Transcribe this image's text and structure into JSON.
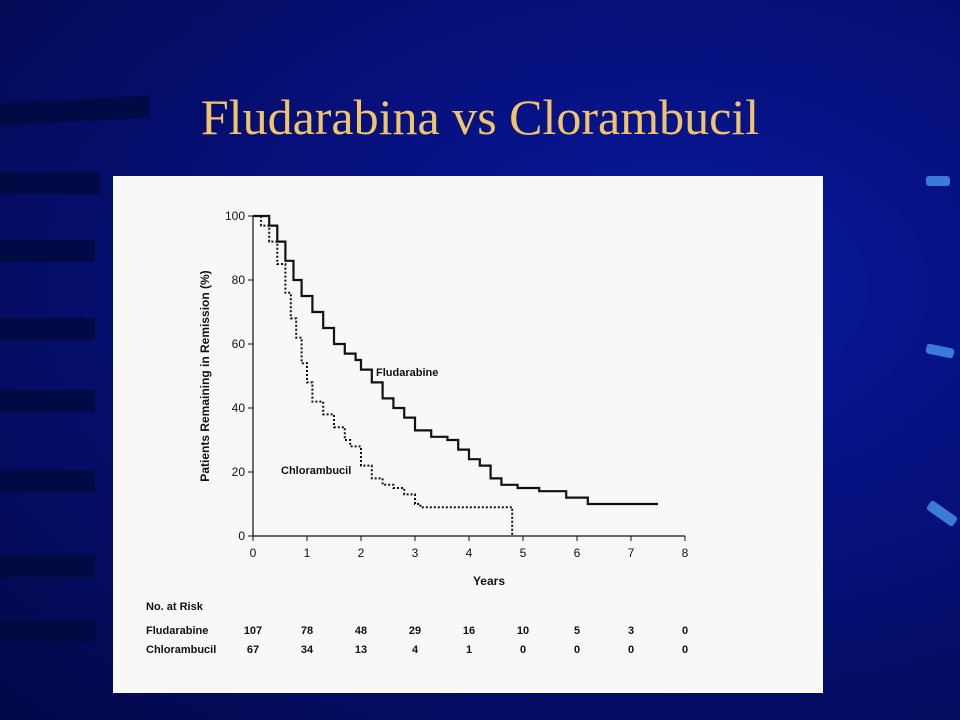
{
  "slide": {
    "title": "Fludarabina vs Clorambucil"
  },
  "chart_data": {
    "type": "line",
    "xlabel": "Years",
    "ylabel": "Patients Remaining in Remission (%)",
    "xlim": [
      0,
      8
    ],
    "ylim": [
      0,
      100
    ],
    "xticks": [
      0,
      1,
      2,
      3,
      4,
      5,
      6,
      7,
      8
    ],
    "yticks": [
      0,
      20,
      40,
      60,
      80,
      100
    ],
    "grid": false,
    "legend": "inline labels",
    "series": [
      {
        "name": "Fludarabine",
        "style": "solid",
        "points": [
          [
            0,
            100
          ],
          [
            0.2,
            100
          ],
          [
            0.3,
            97
          ],
          [
            0.45,
            92
          ],
          [
            0.6,
            86
          ],
          [
            0.75,
            80
          ],
          [
            0.9,
            75
          ],
          [
            1.1,
            70
          ],
          [
            1.3,
            65
          ],
          [
            1.5,
            60
          ],
          [
            1.7,
            57
          ],
          [
            1.9,
            55
          ],
          [
            2.0,
            52
          ],
          [
            2.2,
            48
          ],
          [
            2.4,
            43
          ],
          [
            2.6,
            40
          ],
          [
            2.8,
            37
          ],
          [
            3.0,
            33
          ],
          [
            3.3,
            31
          ],
          [
            3.6,
            30
          ],
          [
            3.8,
            27
          ],
          [
            4.0,
            24
          ],
          [
            4.2,
            22
          ],
          [
            4.4,
            18
          ],
          [
            4.6,
            16
          ],
          [
            4.9,
            15
          ],
          [
            5.3,
            14
          ],
          [
            5.8,
            12
          ],
          [
            6.2,
            10
          ],
          [
            6.8,
            10
          ],
          [
            7.5,
            10
          ]
        ]
      },
      {
        "name": "Chlorambucil",
        "style": "dotted",
        "points": [
          [
            0,
            100
          ],
          [
            0.15,
            97
          ],
          [
            0.3,
            92
          ],
          [
            0.45,
            85
          ],
          [
            0.6,
            76
          ],
          [
            0.7,
            68
          ],
          [
            0.8,
            62
          ],
          [
            0.9,
            54
          ],
          [
            1.0,
            48
          ],
          [
            1.1,
            42
          ],
          [
            1.3,
            38
          ],
          [
            1.5,
            34
          ],
          [
            1.7,
            30
          ],
          [
            1.8,
            28
          ],
          [
            2.0,
            22
          ],
          [
            2.2,
            18
          ],
          [
            2.4,
            16
          ],
          [
            2.6,
            15
          ],
          [
            2.8,
            13
          ],
          [
            3.0,
            10
          ],
          [
            3.1,
            9
          ],
          [
            3.5,
            9
          ],
          [
            4.0,
            9
          ],
          [
            4.4,
            9
          ],
          [
            4.75,
            9
          ],
          [
            4.8,
            0
          ]
        ]
      }
    ],
    "risk_table": {
      "heading": "No. at Risk",
      "rows": [
        {
          "label": "Fludarabine",
          "values": [
            "107",
            "78",
            "48",
            "29",
            "16",
            "10",
            "5",
            "3",
            "0"
          ]
        },
        {
          "label": "Chlorambucil",
          "values": [
            "67",
            "34",
            "13",
            "4",
            "1",
            "0",
            "0",
            "0",
            "0"
          ]
        }
      ]
    },
    "colors": {
      "line": "#111111",
      "panel": "#f8f8f6",
      "title": "#f2c46a"
    }
  }
}
